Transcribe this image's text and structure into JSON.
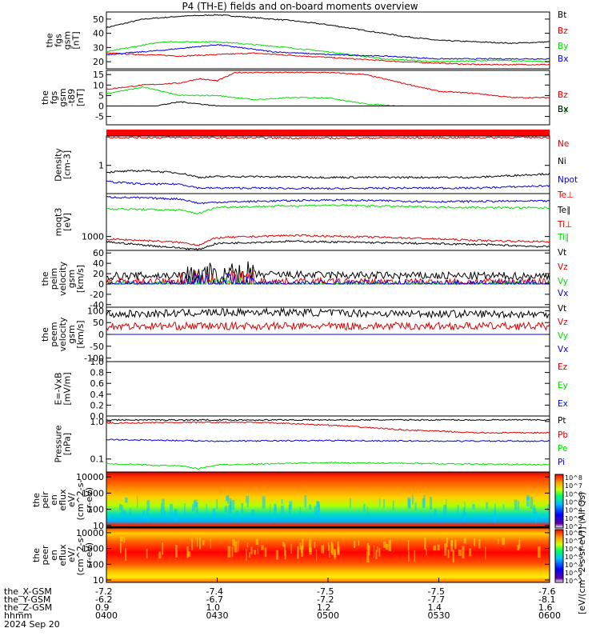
{
  "title": "P4 (TH-E) fields and on-board moments overview",
  "date": "2024 Sep 20",
  "colorbar_unit": "[eV/(cm^2-s-sr-eV)] (All Qs)",
  "colorbar_ticks": [
    "10^8",
    "10^7",
    "10^6",
    "10^5",
    "10^4",
    "10^3",
    "10^2"
  ],
  "colors": {
    "black": "#000000",
    "red": "#e00000",
    "green": "#00e000",
    "blue": "#0000e0",
    "sat_red": "#ff0000"
  },
  "ephemeris": [
    {
      "label": "the_X-GSM",
      "values": [
        "-7.2",
        "-7.4",
        "-7.5",
        "-7.5",
        "-7.6"
      ]
    },
    {
      "label": "the_Y-GSM",
      "values": [
        "-6.2",
        "-6.7",
        "-7.2",
        "-7.7",
        "-8.1"
      ]
    },
    {
      "label": "the_Z-GSM",
      "values": [
        "0.9",
        "1.0",
        "1.2",
        "1.4",
        "1.6"
      ]
    },
    {
      "label": "hhmm",
      "values": [
        "0400",
        "0430",
        "0500",
        "0530",
        "0600"
      ]
    }
  ],
  "chart_data": [
    {
      "type": "line",
      "ylabel": [
        "the",
        "fgs",
        "gsm",
        "[nT]"
      ],
      "ylim": [
        15,
        55
      ],
      "yticks": [
        "20",
        "30",
        "40",
        "50"
      ],
      "legend": [
        "Bt",
        "Bz",
        "By",
        "Bx"
      ],
      "series": [
        {
          "name": "Bt",
          "color": "black",
          "x": [
            0,
            10,
            20,
            30,
            40,
            50,
            60,
            70,
            80,
            90,
            100,
            110,
            120
          ],
          "values": [
            44,
            50,
            52,
            53,
            51,
            49,
            46,
            42,
            38,
            35,
            34,
            33,
            34
          ]
        },
        {
          "name": "Bz",
          "color": "red",
          "x": [
            0,
            20,
            40,
            60,
            80,
            100,
            120
          ],
          "values": [
            26,
            24,
            26,
            23,
            20,
            18,
            18
          ]
        },
        {
          "name": "By",
          "color": "green",
          "x": [
            0,
            15,
            30,
            45,
            60,
            75,
            90,
            105,
            120
          ],
          "values": [
            27,
            34,
            34,
            31,
            27,
            22,
            20,
            21,
            20
          ]
        },
        {
          "name": "Bx",
          "color": "blue",
          "x": [
            0,
            15,
            30,
            45,
            60,
            75,
            90,
            105,
            120
          ],
          "values": [
            25,
            28,
            32,
            27,
            25,
            24,
            22,
            22,
            22
          ]
        }
      ]
    },
    {
      "type": "line",
      "ylabel": [
        "the",
        "fgs",
        "gsm",
        "-t89",
        "[nT]"
      ],
      "ylim": [
        -9,
        17
      ],
      "yticks": [
        "-5",
        "0",
        "5",
        "10",
        "15"
      ],
      "legend": [
        "Bz",
        "By",
        "Bx"
      ],
      "series": [
        {
          "name": "Bz",
          "color": "red",
          "x": [
            0,
            10,
            20,
            25,
            30,
            35,
            40,
            50,
            60,
            70,
            80,
            90,
            100,
            110,
            120
          ],
          "values": [
            8,
            10,
            11,
            13,
            12,
            16,
            16,
            16,
            16,
            15,
            11,
            7,
            6,
            4,
            4
          ]
        },
        {
          "name": "By",
          "color": "green",
          "x": [
            0,
            10,
            20,
            30,
            40,
            50,
            60,
            70,
            80,
            90,
            100,
            110,
            120
          ],
          "values": [
            6,
            9,
            5,
            5,
            3,
            4,
            4,
            1,
            0,
            -3,
            -3,
            -2,
            -2
          ]
        },
        {
          "name": "Bx",
          "color": "black",
          "x": [
            0,
            10,
            20,
            30,
            40,
            50,
            60,
            70,
            80,
            90,
            100,
            110,
            120
          ],
          "values": [
            -5,
            -1,
            2,
            0,
            -1,
            -2,
            -2,
            -1,
            -3,
            -2,
            -2,
            -2,
            -1
          ]
        }
      ]
    },
    {
      "type": "bar",
      "label": "saturation flag band"
    },
    {
      "type": "line",
      "ylabel": [
        "Density",
        "[cm-3]"
      ],
      "scale": "log",
      "ylim": [
        0.3,
        3.5
      ],
      "yticks": [
        "1"
      ],
      "legend": [
        "Ne",
        "Ni",
        "Npot"
      ],
      "series": [
        {
          "name": "Ne",
          "color": "red",
          "x": [
            0,
            60,
            120
          ],
          "values": [
            3.3,
            3.2,
            3.3
          ]
        },
        {
          "name": "Ni",
          "color": "black",
          "x": [
            0,
            10,
            20,
            25,
            30,
            40,
            60,
            80,
            100,
            120
          ],
          "values": [
            0.75,
            0.8,
            0.72,
            0.6,
            0.62,
            0.62,
            0.6,
            0.6,
            0.6,
            0.7
          ]
        },
        {
          "name": "Npot",
          "color": "blue",
          "x": [
            0,
            10,
            20,
            25,
            30,
            40,
            60,
            80,
            100,
            120
          ],
          "values": [
            0.5,
            0.45,
            0.45,
            0.38,
            0.38,
            0.38,
            0.37,
            0.38,
            0.38,
            0.42
          ]
        }
      ]
    },
    {
      "type": "line",
      "ylabel": [
        "moqt3",
        "[eV]"
      ],
      "scale": "log",
      "ylim": [
        560,
        6000
      ],
      "yticks": [
        "1000"
      ],
      "legend": [
        "Te⊥",
        "Te∥",
        "Ti⊥",
        "Ti∥"
      ],
      "series": [
        {
          "name": "Te⊥",
          "color": "blue",
          "x": [
            0,
            20,
            25,
            30,
            60,
            90,
            120
          ],
          "values": [
            5200,
            4800,
            4000,
            4200,
            4600,
            4300,
            4400
          ]
        },
        {
          "name": "Te∥",
          "color": "black",
          "x": [
            0,
            10,
            20,
            25,
            30,
            50,
            80,
            100,
            120
          ],
          "values": [
            800,
            700,
            620,
            580,
            750,
            820,
            760,
            720,
            650
          ]
        },
        {
          "name": "Ti⊥",
          "color": "red",
          "x": [
            0,
            10,
            20,
            25,
            30,
            50,
            80,
            100,
            120
          ],
          "values": [
            900,
            850,
            780,
            700,
            950,
            1050,
            950,
            850,
            800
          ]
        },
        {
          "name": "Ti∥",
          "color": "green",
          "x": [
            0,
            20,
            25,
            30,
            60,
            90,
            120
          ],
          "values": [
            3200,
            3000,
            2600,
            3400,
            3700,
            3400,
            3300
          ]
        }
      ]
    },
    {
      "type": "line",
      "ylabel": [
        "the",
        "peim",
        "velocity",
        "gsm",
        "[km/s]"
      ],
      "ylim": [
        -45,
        65
      ],
      "yticks": [
        "-40",
        "-20",
        "0",
        "20",
        "40",
        "60"
      ],
      "legend": [
        "Vt",
        "Vz",
        "Vy",
        "Vx"
      ],
      "series": [
        {
          "name": "Vt",
          "color": "black",
          "x": [
            0,
            40,
            80,
            120
          ],
          "values": [
            15,
            18,
            16,
            15
          ]
        },
        {
          "name": "Vz",
          "color": "red",
          "x": [
            0,
            40,
            80,
            120
          ],
          "values": [
            4,
            5,
            3,
            4
          ]
        },
        {
          "name": "Vy",
          "color": "green",
          "x": [
            0,
            40,
            80,
            120
          ],
          "values": [
            -2,
            -5,
            -3,
            -2
          ]
        },
        {
          "name": "Vx",
          "color": "blue",
          "x": [
            0,
            40,
            80,
            120
          ],
          "values": [
            0,
            0,
            0,
            0
          ]
        }
      ]
    },
    {
      "type": "line",
      "ylabel": [
        "the",
        "peem",
        "velocity",
        "gsm",
        "[km/s]"
      ],
      "ylim": [
        -115,
        115
      ],
      "yticks": [
        "-100",
        "-50",
        "0",
        "50",
        "100"
      ],
      "legend": [
        "Vt",
        "Vz",
        "Vy",
        "Vx"
      ],
      "series": [
        {
          "name": "Vt",
          "color": "black",
          "x": [
            0,
            40,
            80,
            120
          ],
          "values": [
            85,
            95,
            88,
            85
          ]
        },
        {
          "name": "Vz",
          "color": "red",
          "x": [
            0,
            40,
            80,
            120
          ],
          "values": [
            35,
            35,
            35,
            35
          ]
        },
        {
          "name": "Vy",
          "color": "green",
          "x": [
            0,
            40,
            80,
            120
          ],
          "values": [
            -40,
            -40,
            -40,
            -40
          ]
        },
        {
          "name": "Vx",
          "color": "blue",
          "x": [
            0,
            40,
            80,
            120
          ],
          "values": [
            -85,
            -90,
            -85,
            -85
          ]
        }
      ]
    },
    {
      "type": "line",
      "ylabel": [
        "E=-VxB",
        "[mV/m]"
      ],
      "ylim": [
        0,
        1
      ],
      "yticks": [
        "0.0",
        "0.2",
        "0.4",
        "0.6",
        "0.8",
        "1.0"
      ],
      "legend": [
        "Ez",
        "Ey",
        "Ex"
      ],
      "series": []
    },
    {
      "type": "line",
      "ylabel": [
        "Pressure",
        "[nPa]"
      ],
      "scale": "log",
      "ylim": [
        0.045,
        1.4
      ],
      "yticks": [
        "0.1",
        "1.0"
      ],
      "legend": [
        "Pt",
        "Pb",
        "Pe",
        "Pi"
      ],
      "series": [
        {
          "name": "Pt",
          "color": "black",
          "x": [
            0,
            120
          ],
          "values": [
            1.1,
            1.1
          ]
        },
        {
          "name": "Pb",
          "color": "red",
          "x": [
            0,
            20,
            40,
            60,
            80,
            100,
            120
          ],
          "values": [
            0.9,
            0.95,
            0.95,
            0.8,
            0.6,
            0.5,
            0.5
          ]
        },
        {
          "name": "Pe",
          "color": "blue",
          "x": [
            0,
            30,
            60,
            90,
            120
          ],
          "values": [
            0.33,
            0.3,
            0.31,
            0.3,
            0.3
          ]
        },
        {
          "name": "Pi",
          "color": "green",
          "x": [
            0,
            20,
            25,
            30,
            60,
            90,
            120
          ],
          "values": [
            0.075,
            0.065,
            0.055,
            0.07,
            0.08,
            0.075,
            0.07
          ]
        }
      ]
    },
    {
      "type": "heatmap",
      "ylabel": [
        "the",
        "peir",
        "en",
        "eflux",
        "eV/",
        "(cm^2-s-",
        "sr-eV)"
      ],
      "scale": "log",
      "ylim": [
        7,
        20000
      ],
      "yticks": [
        "10",
        "100",
        "1000",
        "10000"
      ]
    },
    {
      "type": "heatmap",
      "ylabel": [
        "the",
        "peer",
        "en",
        "eflux",
        "eV/",
        "(cm^2-s-",
        "sr-eV)"
      ],
      "scale": "log",
      "ylim": [
        7,
        20000
      ],
      "yticks": [
        "10",
        "100",
        "1000",
        "10000"
      ]
    }
  ]
}
